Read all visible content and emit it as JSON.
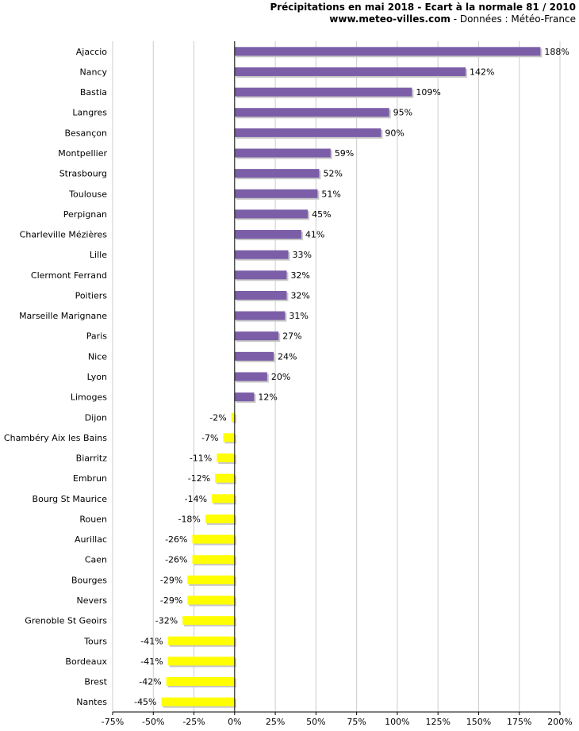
{
  "header": {
    "title": "Précipitations en mai 2018 - Ecart à la normale 81 / 2010",
    "site": "www.meteo-villes.com",
    "source": " - Données : Météo-France"
  },
  "colors": {
    "positive": "#7b5ea7",
    "negative": "#ffff00",
    "grid": "#cccccc",
    "shadow": "#c8c8c8"
  },
  "chart_data": {
    "type": "bar",
    "orientation": "horizontal",
    "title": "Précipitations en mai 2018 - Ecart à la normale 81 / 2010",
    "xlabel": "",
    "ylabel": "",
    "xlim": [
      -75,
      200
    ],
    "xticks": [
      -75,
      -50,
      -25,
      0,
      25,
      50,
      75,
      100,
      125,
      150,
      175,
      200
    ],
    "xtick_labels": [
      "-75%",
      "-50%",
      "-25%",
      "0%",
      "25%",
      "50%",
      "75%",
      "100%",
      "125%",
      "150%",
      "175%",
      "200%"
    ],
    "grid": true,
    "categories": [
      "Ajaccio",
      "Nancy",
      "Bastia",
      "Langres",
      "Besançon",
      "Montpellier",
      "Strasbourg",
      "Toulouse",
      "Perpignan",
      "Charleville Mézières",
      "Lille",
      "Clermont Ferrand",
      "Poitiers",
      "Marseille Marignane",
      "Paris",
      "Nice",
      "Lyon",
      "Limoges",
      "Dijon",
      "Chambéry Aix les Bains",
      "Biarritz",
      "Embrun",
      "Bourg St Maurice",
      "Rouen",
      "Aurillac",
      "Caen",
      "Bourges",
      "Nevers",
      "Grenoble St Geoirs",
      "Tours",
      "Bordeaux",
      "Brest",
      "Nantes"
    ],
    "values": [
      188,
      142,
      109,
      95,
      90,
      59,
      52,
      51,
      45,
      41,
      33,
      32,
      32,
      31,
      27,
      24,
      20,
      12,
      -2,
      -7,
      -11,
      -12,
      -14,
      -18,
      -26,
      -26,
      -29,
      -29,
      -32,
      -41,
      -41,
      -42,
      -45
    ],
    "value_labels": [
      "188%",
      "142%",
      "109%",
      "95%",
      "90%",
      "59%",
      "52%",
      "51%",
      "45%",
      "41%",
      "33%",
      "32%",
      "32%",
      "31%",
      "27%",
      "24%",
      "20%",
      "12%",
      "-2%",
      "-7%",
      "-11%",
      "-12%",
      "-14%",
      "-18%",
      "-26%",
      "-26%",
      "-29%",
      "-29%",
      "-32%",
      "-41%",
      "-41%",
      "-42%",
      "-45%"
    ]
  }
}
